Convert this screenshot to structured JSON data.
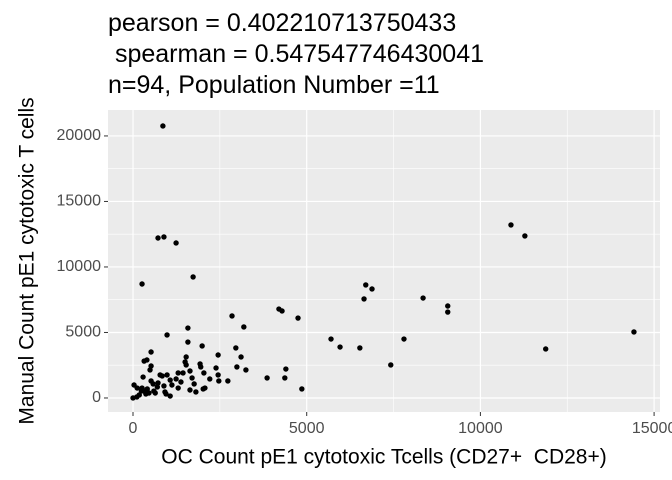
{
  "chart_data": {
    "type": "scatter",
    "title": [
      "pearson = 0.402210713750433",
      " spearman = 0.547547746430041",
      "n=94, Population Number =11"
    ],
    "x_label": "OC Count pE1 cytotoxic Tcells (CD27+  CD28+)",
    "y_label": "Manual Count pE1 cytotoxic T cells",
    "color": "#000000",
    "grid": true,
    "xlim": [
      -720,
      15170
    ],
    "ylim": [
      -1070,
      21980
    ],
    "xticks": [
      0,
      5000,
      10000,
      15000
    ],
    "yticks": [
      0,
      5000,
      10000,
      15000,
      20000
    ],
    "x": [
      860,
      720,
      890,
      1240,
      260,
      1730,
      10880,
      11280,
      14420,
      11880,
      9060,
      9060,
      8350,
      6700,
      6880,
      6650,
      7800,
      7420,
      6530,
      5700,
      5960,
      4200,
      4290,
      4750,
      2850,
      3190,
      2960,
      3110,
      3250,
      2990,
      3860,
      4400,
      4370,
      4860,
      2450,
      2390,
      2450,
      2470,
      2730,
      1990,
      1930,
      2040,
      2070,
      1580,
      1580,
      1530,
      1500,
      1530,
      1440,
      1640,
      1760,
      1810,
      1700,
      980,
      1300,
      1240,
      1070,
      980,
      1120,
      1300,
      520,
      400,
      320,
      520,
      490,
      520,
      720,
      580,
      780,
      890,
      920,
      950,
      1070,
      290,
      260,
      320,
      370,
      460,
      600,
      120,
      30,
      0,
      110,
      2020,
      1640,
      700,
      640,
      1380,
      2210,
      180,
      840,
      1950,
      240,
      410
    ],
    "values": [
      20760,
      12210,
      12290,
      11830,
      8700,
      9240,
      13210,
      12370,
      5040,
      3740,
      6560,
      7020,
      7630,
      8630,
      8320,
      7560,
      4500,
      2520,
      3820,
      4500,
      3890,
      6790,
      6640,
      6100,
      6260,
      5420,
      3820,
      3130,
      2140,
      2370,
      1530,
      2210,
      1530,
      690,
      3280,
      2290,
      1760,
      1300,
      1300,
      3970,
      2600,
      1910,
      760,
      5340,
      4270,
      3130,
      2750,
      2520,
      1910,
      2060,
      1070,
      460,
      1530,
      4810,
      1910,
      1450,
      1370,
      1760,
      990,
      760,
      3510,
      2900,
      2820,
      2440,
      2140,
      1300,
      1150,
      1070,
      1760,
      920,
      460,
      310,
      150,
      1600,
      760,
      530,
      310,
      380,
      530,
      760,
      990,
      0,
      80,
      690,
      610,
      840,
      380,
      1220,
      1450,
      230,
      1680,
      2370,
      540,
      690
    ]
  }
}
